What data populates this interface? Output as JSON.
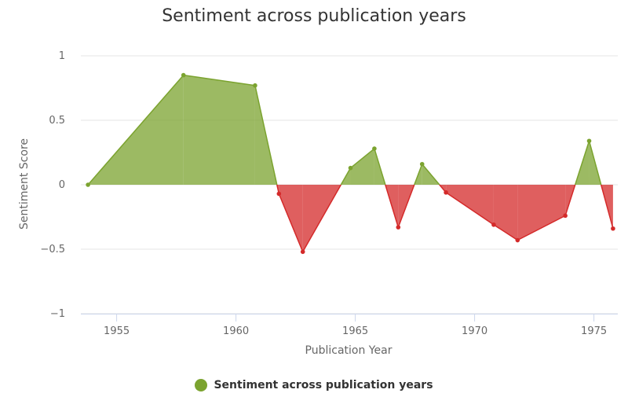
{
  "chart_data": {
    "type": "area",
    "title": "Sentiment across publication years",
    "xlabel": "Publication Year",
    "ylabel": "Sentiment Score",
    "xlim": [
      1953.5,
      1976
    ],
    "ylim": [
      -1,
      1
    ],
    "xticks": [
      1955,
      1960,
      1965,
      1970,
      1975
    ],
    "yticks": [
      -1,
      -0.5,
      0,
      0.5,
      1
    ],
    "ytick_labels": [
      "−1",
      "−0.5",
      "0",
      "0.5",
      "1"
    ],
    "grid": true,
    "legend_position": "bottom-center",
    "positive_color": "#7ba32f",
    "negative_color": "#d42a2a",
    "series": [
      {
        "name": "Sentiment across publication years",
        "points": [
          {
            "x": 1953.8,
            "y": 0.0
          },
          {
            "x": 1957.8,
            "y": 0.85
          },
          {
            "x": 1960.8,
            "y": 0.77
          },
          {
            "x": 1961.8,
            "y": -0.07
          },
          {
            "x": 1962.8,
            "y": -0.52
          },
          {
            "x": 1964.8,
            "y": 0.13
          },
          {
            "x": 1965.8,
            "y": 0.28
          },
          {
            "x": 1966.8,
            "y": -0.33
          },
          {
            "x": 1967.8,
            "y": 0.16
          },
          {
            "x": 1968.8,
            "y": -0.06
          },
          {
            "x": 1970.8,
            "y": -0.31
          },
          {
            "x": 1971.8,
            "y": -0.43
          },
          {
            "x": 1973.8,
            "y": -0.24
          },
          {
            "x": 1974.8,
            "y": 0.34
          },
          {
            "x": 1975.8,
            "y": -0.34
          }
        ]
      }
    ]
  }
}
